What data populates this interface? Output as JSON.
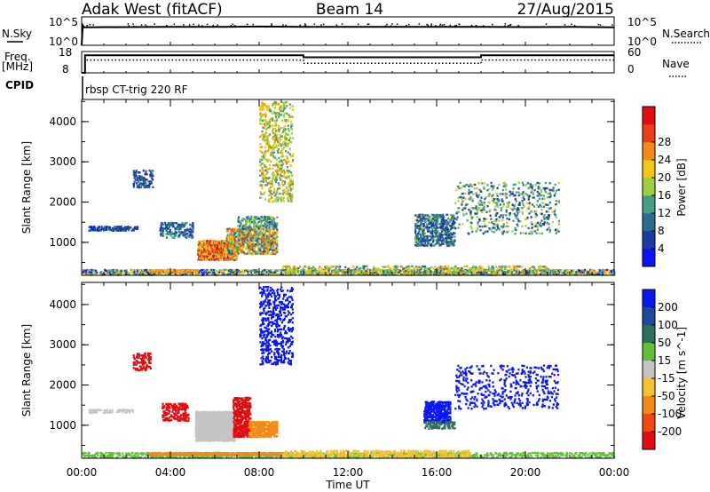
{
  "header": {
    "radar": "Adak West (fitACF)",
    "beam": "Beam 14",
    "date": "27/Aug/2015",
    "cpid_text": "rbsp CT-trig 220 RF"
  },
  "strip_labels": {
    "nsky": "N.Sky",
    "nsky_ticks": [
      "10^5",
      "10^0"
    ],
    "nsearch": "N.Search",
    "nsearch_ticks": [
      "10^5",
      "10^0"
    ],
    "freq": "Freq.",
    "freq_unit": "[MHz]",
    "freq_ticks": [
      "18",
      "8"
    ],
    "nave": "Nave",
    "nave_ticks": [
      "60",
      "0"
    ],
    "cpid": "CPID"
  },
  "chart_data": [
    {
      "type": "line",
      "title": "N.Sky / N.Search",
      "x_units": "hours UT",
      "series": [
        {
          "name": "N.Sky",
          "style": "solid",
          "x": [
            0,
            0.05,
            0.1,
            2,
            4,
            6,
            8,
            10,
            12,
            14,
            16,
            18,
            20,
            22,
            24
          ],
          "y": [
            1,
            3000,
            1500,
            1600,
            1800,
            1700,
            2000,
            1700,
            1800,
            1700,
            1800,
            1700,
            1600,
            1700,
            1500
          ]
        }
      ],
      "ylim_log10": [
        0,
        5
      ]
    },
    {
      "type": "line",
      "title": "Freq. / Nave",
      "x_units": "hours UT",
      "series": [
        {
          "name": "Freq. [MHz]",
          "style": "solid",
          "x": [
            0,
            0.15,
            0.15,
            10,
            10,
            18,
            18,
            24
          ],
          "y": [
            8,
            8,
            16.2,
            16.2,
            15.3,
            15.3,
            16.2,
            16.2
          ],
          "ylim": [
            8,
            18
          ]
        },
        {
          "name": "Nave",
          "style": "dotted",
          "x": [
            0,
            0.15,
            0.15,
            10,
            10,
            18,
            18,
            24
          ],
          "y": [
            0,
            0,
            36,
            36,
            27,
            27,
            36,
            36
          ],
          "ylim": [
            0,
            60
          ]
        }
      ]
    },
    {
      "type": "heatmap",
      "title": "Power [dB]",
      "xlabel": "Time UT",
      "ylabel": "Slant Range [km]",
      "x_ticks": [
        "00:00",
        "04:00",
        "08:00",
        "12:00",
        "16:00",
        "20:00",
        "00:00"
      ],
      "xlim_hours": [
        0,
        24
      ],
      "y_ticks": [
        "1000",
        "2000",
        "3000",
        "4000"
      ],
      "ylim": [
        180,
        4550
      ],
      "colorbar": {
        "label": "Power [dB]",
        "ticks": [
          "4",
          "8",
          "12",
          "16",
          "20",
          "24",
          "28"
        ],
        "range": [
          0,
          30
        ],
        "colors": [
          "#0a18ee",
          "#1c3aa0",
          "#2a6c8c",
          "#45a080",
          "#9ecf3c",
          "#f0c81a",
          "#f08a1a",
          "#e8401a",
          "#e00c10"
        ]
      },
      "regions": [
        {
          "t": [
            0.0,
            24.0
          ],
          "r": [
            180,
            330
          ],
          "v": [
            2,
            22
          ],
          "d": 0.55
        },
        {
          "t": [
            3.0,
            5.2
          ],
          "r": [
            250,
            320
          ],
          "v": [
            18,
            24
          ],
          "d": 0.9
        },
        {
          "t": [
            5.2,
            7.0
          ],
          "r": [
            550,
            1050
          ],
          "v": [
            14,
            30
          ],
          "d": 0.85
        },
        {
          "t": [
            6.5,
            8.8
          ],
          "r": [
            700,
            1350
          ],
          "v": [
            6,
            26
          ],
          "d": 0.6
        },
        {
          "t": [
            7.0,
            8.8
          ],
          "r": [
            1350,
            1650
          ],
          "v": [
            6,
            16
          ],
          "d": 0.45
        },
        {
          "t": [
            0.3,
            2.5
          ],
          "r": [
            1280,
            1400
          ],
          "v": [
            3,
            8
          ],
          "d": 0.6
        },
        {
          "t": [
            3.5,
            5.0
          ],
          "r": [
            1100,
            1500
          ],
          "v": [
            4,
            12
          ],
          "d": 0.35
        },
        {
          "t": [
            2.3,
            3.2
          ],
          "r": [
            2350,
            2800
          ],
          "v": [
            3,
            10
          ],
          "d": 0.4
        },
        {
          "t": [
            8.0,
            9.5
          ],
          "r": [
            2000,
            4500
          ],
          "v": [
            10,
            22
          ],
          "d": 0.25
        },
        {
          "t": [
            15.0,
            16.8
          ],
          "r": [
            900,
            1700
          ],
          "v": [
            3,
            14
          ],
          "d": 0.45
        },
        {
          "t": [
            16.8,
            21.5
          ],
          "r": [
            1200,
            2500
          ],
          "v": [
            3,
            18
          ],
          "d": 0.15
        },
        {
          "t": [
            9.0,
            21.0
          ],
          "r": [
            180,
            420
          ],
          "v": [
            8,
            22
          ],
          "d": 0.35
        }
      ]
    },
    {
      "type": "heatmap",
      "title": "Velocity [m s^-1]",
      "xlabel": "Time UT",
      "ylabel": "Slant Range [km]",
      "x_ticks": [
        "00:00",
        "04:00",
        "08:00",
        "12:00",
        "16:00",
        "20:00",
        "00:00"
      ],
      "xlim_hours": [
        0,
        24
      ],
      "y_ticks": [
        "1000",
        "2000",
        "3000",
        "4000"
      ],
      "ylim": [
        180,
        4550
      ],
      "colorbar": {
        "label": "Velocity [m s^-1]",
        "ticks": [
          "200",
          "100",
          "50",
          "15",
          "-15",
          "-50",
          "-100",
          "-200"
        ],
        "colors": [
          "#0a18ee",
          "#20489e",
          "#2f6e5e",
          "#63c03a",
          "#c4c4c4",
          "#f4c234",
          "#f08a18",
          "#ec4a10",
          "#e00c10"
        ]
      },
      "regions": [
        {
          "t": [
            0.0,
            24.0
          ],
          "r": [
            180,
            330
          ],
          "c": "#63c03a",
          "d": 0.45
        },
        {
          "t": [
            3.0,
            9.0
          ],
          "r": [
            250,
            320
          ],
          "c": "#f08a18",
          "d": 0.9
        },
        {
          "t": [
            9.0,
            17.5
          ],
          "r": [
            200,
            380
          ],
          "c": "#f4c234",
          "d": 0.45
        },
        {
          "t": [
            5.1,
            6.9
          ],
          "r": [
            600,
            1350
          ],
          "c": "#c4c4c4",
          "d": 0.95
        },
        {
          "t": [
            6.8,
            7.6
          ],
          "r": [
            700,
            1700
          ],
          "c": "#e00c10",
          "d": 0.7
        },
        {
          "t": [
            7.5,
            8.8
          ],
          "r": [
            700,
            1100
          ],
          "c": "#f08a18",
          "d": 0.7
        },
        {
          "t": [
            0.3,
            2.3
          ],
          "r": [
            1300,
            1400
          ],
          "c": "#c4c4c4",
          "d": 0.55
        },
        {
          "t": [
            3.6,
            4.8
          ],
          "r": [
            1100,
            1550
          ],
          "c": "#e00c10",
          "d": 0.45
        },
        {
          "t": [
            2.3,
            3.1
          ],
          "r": [
            2350,
            2800
          ],
          "c": "#e00c10",
          "d": 0.4
        },
        {
          "t": [
            8.0,
            9.5
          ],
          "r": [
            2500,
            4450
          ],
          "c": "#0a18ee",
          "d": 0.25
        },
        {
          "t": [
            15.4,
            16.6
          ],
          "r": [
            1050,
            1600
          ],
          "c": "#0a18ee",
          "d": 0.7
        },
        {
          "t": [
            15.4,
            16.8
          ],
          "r": [
            900,
            1100
          ],
          "c": "#2f6e5e",
          "d": 0.5
        },
        {
          "t": [
            16.8,
            21.5
          ],
          "r": [
            1400,
            2500
          ],
          "c": "#0a18ee",
          "d": 0.15
        }
      ]
    }
  ]
}
